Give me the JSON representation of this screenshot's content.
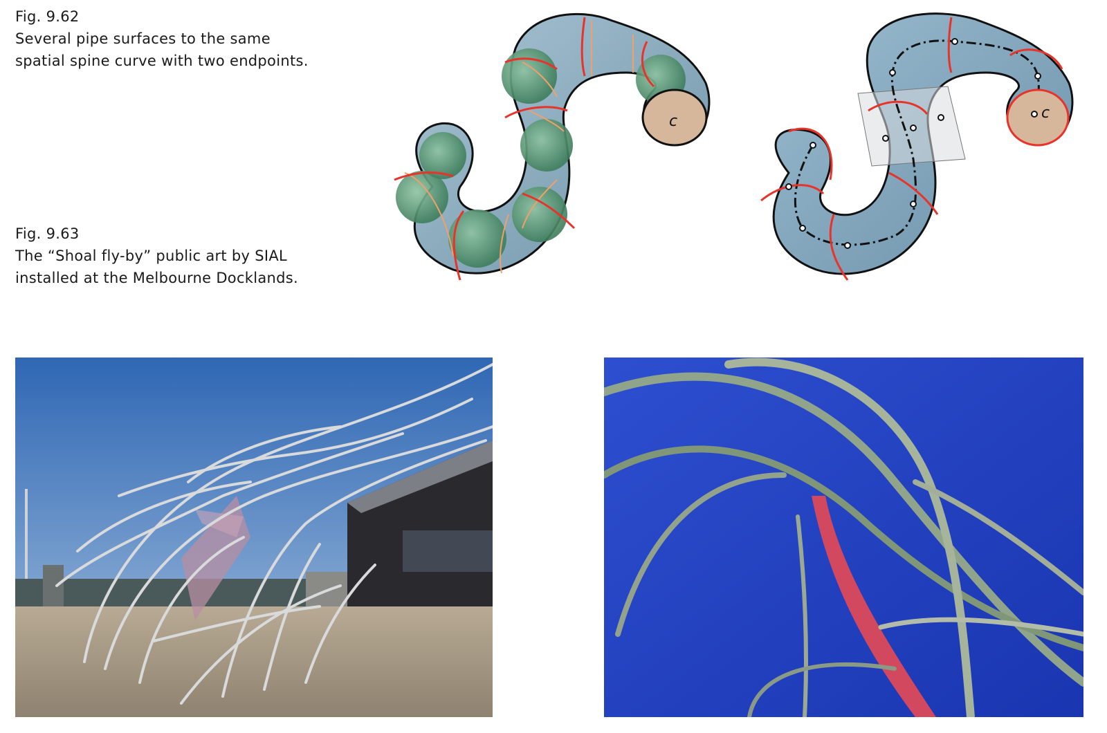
{
  "fig62": {
    "label": "Fig. 9.62",
    "lines": [
      "Several pipe surfaces to the same",
      "spatial spine curve with two endpoints."
    ]
  },
  "fig63": {
    "label": "Fig. 9.63",
    "lines": [
      "The “Shoal fly-by” public art by SIAL",
      "installed at the Melbourne Docklands."
    ]
  },
  "pipe_left": {
    "end_label": "c"
  },
  "pipe_right": {
    "end_label": "c"
  },
  "colors": {
    "pipe_blue": "#7fa3b8",
    "pipe_green": "#5f9b7a",
    "rib_red": "#e8332a",
    "rib_orange": "#f0a06a",
    "end_cap": "#d7b79c",
    "sky_pale": "#4f86c6",
    "sky_deep": "#1f3fbf",
    "steel": "#c9ccc8"
  }
}
